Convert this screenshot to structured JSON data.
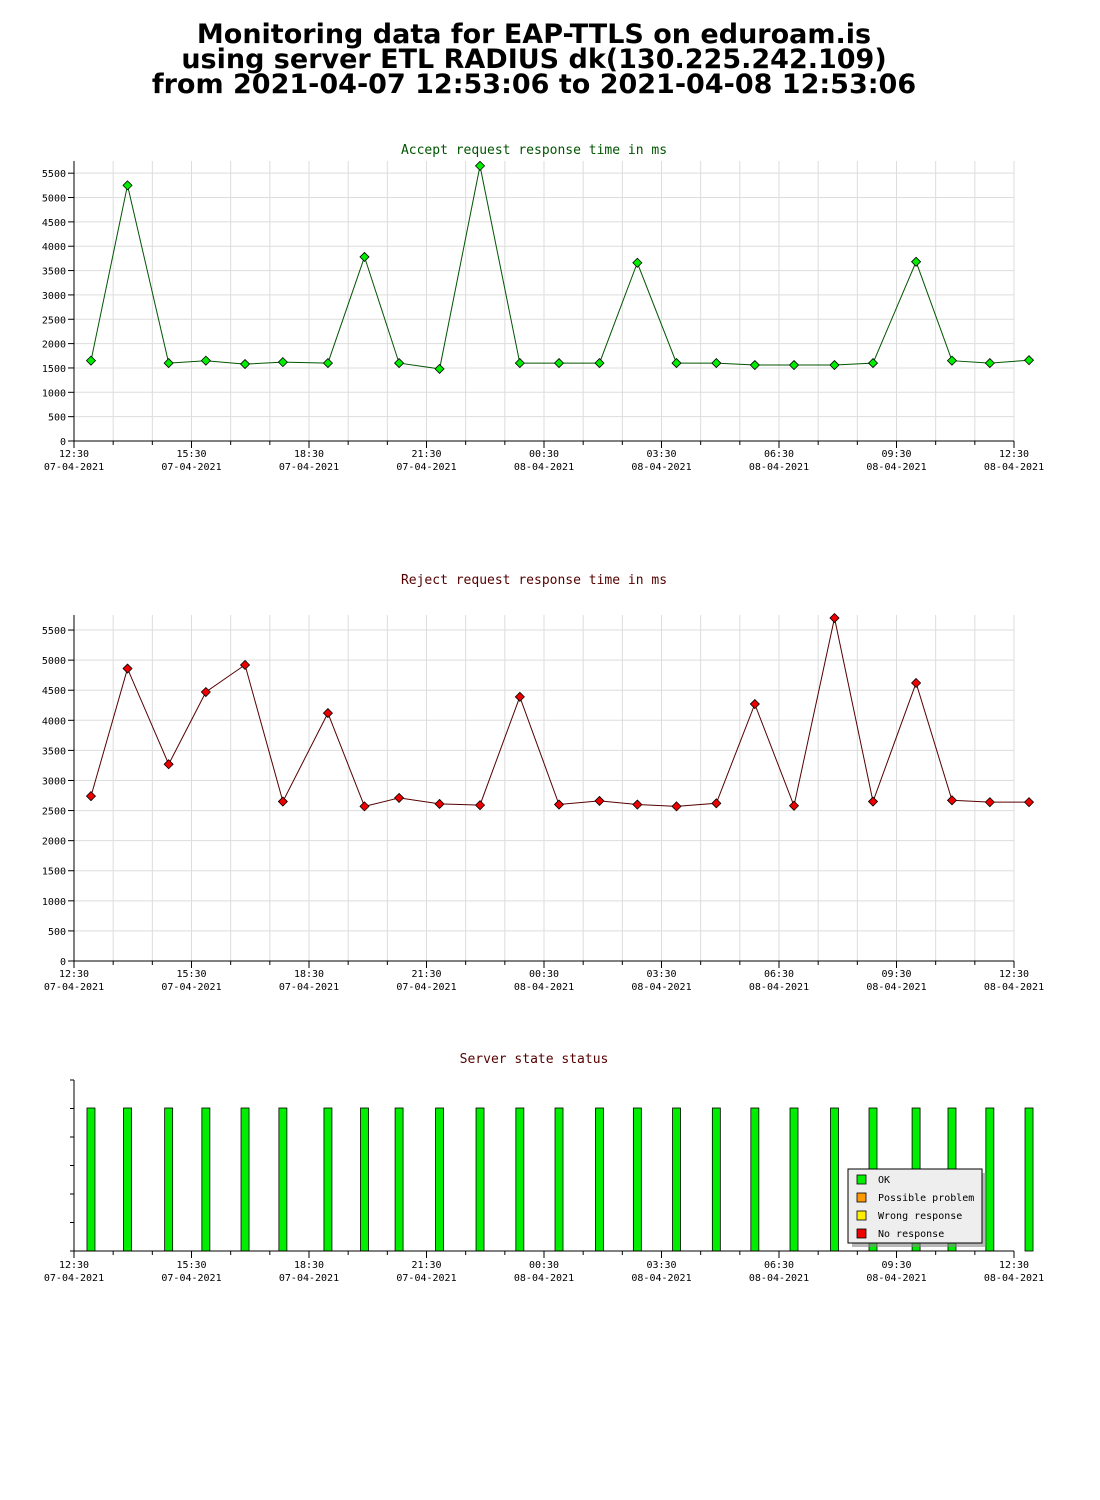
{
  "header": {
    "line1": "Monitoring data for EAP-TTLS on eduroam.is",
    "line2": "using server ETL RADIUS dk(130.225.242.109)",
    "line3": "from 2021-04-07 12:53:06 to 2021-04-08 12:53:06"
  },
  "colors": {
    "accept_marker": "#00ee00",
    "accept_line": "#005500",
    "accept_title": "#005500",
    "reject_marker": "#ee0000",
    "reject_line": "#550000",
    "reject_title": "#550000",
    "status_title": "#550000",
    "ok": "#00ee00",
    "possible_problem": "#ff9900",
    "wrong_response": "#ffee00",
    "no_response": "#ee0000",
    "grid": "#dddddd"
  },
  "x_ticks": [
    {
      "time": "12:30",
      "date": "07-04-2021"
    },
    {
      "time": "15:30",
      "date": "07-04-2021"
    },
    {
      "time": "18:30",
      "date": "07-04-2021"
    },
    {
      "time": "21:30",
      "date": "07-04-2021"
    },
    {
      "time": "00:30",
      "date": "08-04-2021"
    },
    {
      "time": "03:30",
      "date": "08-04-2021"
    },
    {
      "time": "06:30",
      "date": "08-04-2021"
    },
    {
      "time": "09:30",
      "date": "08-04-2021"
    },
    {
      "time": "12:30",
      "date": "08-04-2021"
    }
  ],
  "chart_data": [
    {
      "type": "line",
      "title": "Accept request response time in ms",
      "ylim": [
        0,
        5750
      ],
      "yticks": [
        0,
        500,
        1000,
        1500,
        2000,
        2500,
        3000,
        3500,
        4000,
        4500,
        5000,
        5500
      ],
      "xlim": [
        "2021-04-07 12:30",
        "2021-04-08 12:30"
      ],
      "grid": true,
      "series": [
        {
          "points": [
            {
              "x": "2021-04-07 12:56",
              "y": 1650
            },
            {
              "x": "2021-04-07 13:52",
              "y": 5250
            },
            {
              "x": "2021-04-07 14:55",
              "y": 1600
            },
            {
              "x": "2021-04-07 15:52",
              "y": 1650
            },
            {
              "x": "2021-04-07 16:52",
              "y": 1580
            },
            {
              "x": "2021-04-07 17:50",
              "y": 1620
            },
            {
              "x": "2021-04-07 18:59",
              "y": 1600
            },
            {
              "x": "2021-04-07 19:55",
              "y": 3780
            },
            {
              "x": "2021-04-07 20:48",
              "y": 1600
            },
            {
              "x": "2021-04-07 21:50",
              "y": 1480
            },
            {
              "x": "2021-04-07 22:52",
              "y": 5650
            },
            {
              "x": "2021-04-07 23:53",
              "y": 1600
            },
            {
              "x": "2021-04-08 00:53",
              "y": 1600
            },
            {
              "x": "2021-04-08 01:55",
              "y": 1600
            },
            {
              "x": "2021-04-08 02:53",
              "y": 3660
            },
            {
              "x": "2021-04-08 03:53",
              "y": 1600
            },
            {
              "x": "2021-04-08 04:54",
              "y": 1600
            },
            {
              "x": "2021-04-08 05:53",
              "y": 1560
            },
            {
              "x": "2021-04-08 06:53",
              "y": 1560
            },
            {
              "x": "2021-04-08 07:55",
              "y": 1560
            },
            {
              "x": "2021-04-08 08:54",
              "y": 1600
            },
            {
              "x": "2021-04-08 10:00",
              "y": 3680
            },
            {
              "x": "2021-04-08 10:55",
              "y": 1650
            },
            {
              "x": "2021-04-08 11:53",
              "y": 1600
            },
            {
              "x": "2021-04-08 12:53",
              "y": 1660
            }
          ]
        }
      ]
    },
    {
      "type": "line",
      "title": "Reject request response time in ms",
      "ylim": [
        0,
        5750
      ],
      "yticks": [
        0,
        500,
        1000,
        1500,
        2000,
        2500,
        3000,
        3500,
        4000,
        4500,
        5000,
        5500
      ],
      "xlim": [
        "2021-04-07 12:30",
        "2021-04-08 12:30"
      ],
      "grid": true,
      "series": [
        {
          "points": [
            {
              "x": "2021-04-07 12:56",
              "y": 2740
            },
            {
              "x": "2021-04-07 13:52",
              "y": 4860
            },
            {
              "x": "2021-04-07 14:55",
              "y": 3270
            },
            {
              "x": "2021-04-07 15:52",
              "y": 4470
            },
            {
              "x": "2021-04-07 16:52",
              "y": 4920
            },
            {
              "x": "2021-04-07 17:50",
              "y": 2650
            },
            {
              "x": "2021-04-07 18:59",
              "y": 4120
            },
            {
              "x": "2021-04-07 19:55",
              "y": 2570
            },
            {
              "x": "2021-04-07 20:48",
              "y": 2710
            },
            {
              "x": "2021-04-07 21:50",
              "y": 2610
            },
            {
              "x": "2021-04-07 22:52",
              "y": 2590
            },
            {
              "x": "2021-04-07 23:53",
              "y": 4390
            },
            {
              "x": "2021-04-08 00:53",
              "y": 2600
            },
            {
              "x": "2021-04-08 01:55",
              "y": 2660
            },
            {
              "x": "2021-04-08 02:53",
              "y": 2600
            },
            {
              "x": "2021-04-08 03:53",
              "y": 2570
            },
            {
              "x": "2021-04-08 04:54",
              "y": 2620
            },
            {
              "x": "2021-04-08 05:53",
              "y": 4270
            },
            {
              "x": "2021-04-08 06:53",
              "y": 2580
            },
            {
              "x": "2021-04-08 07:55",
              "y": 5700
            },
            {
              "x": "2021-04-08 08:54",
              "y": 2650
            },
            {
              "x": "2021-04-08 10:00",
              "y": 4620
            },
            {
              "x": "2021-04-08 10:55",
              "y": 2670
            },
            {
              "x": "2021-04-08 11:53",
              "y": 2640
            },
            {
              "x": "2021-04-08 12:53",
              "y": 2640
            }
          ]
        }
      ]
    },
    {
      "type": "bar",
      "title": "Server state status",
      "xlim": [
        "2021-04-07 12:30",
        "2021-04-08 12:30"
      ],
      "legend": {
        "placement": "bottom-right",
        "entries": [
          {
            "label": "OK",
            "color": "#00ee00"
          },
          {
            "label": "Possible problem",
            "color": "#ff9900"
          },
          {
            "label": "Wrong response",
            "color": "#ffee00"
          },
          {
            "label": "No response",
            "color": "#ee0000"
          }
        ]
      },
      "bars": [
        {
          "x": "2021-04-07 12:56",
          "status": "OK"
        },
        {
          "x": "2021-04-07 13:52",
          "status": "OK"
        },
        {
          "x": "2021-04-07 14:55",
          "status": "OK"
        },
        {
          "x": "2021-04-07 15:52",
          "status": "OK"
        },
        {
          "x": "2021-04-07 16:52",
          "status": "OK"
        },
        {
          "x": "2021-04-07 17:50",
          "status": "OK"
        },
        {
          "x": "2021-04-07 18:59",
          "status": "OK"
        },
        {
          "x": "2021-04-07 19:55",
          "status": "OK"
        },
        {
          "x": "2021-04-07 20:48",
          "status": "OK"
        },
        {
          "x": "2021-04-07 21:50",
          "status": "OK"
        },
        {
          "x": "2021-04-07 22:52",
          "status": "OK"
        },
        {
          "x": "2021-04-07 23:53",
          "status": "OK"
        },
        {
          "x": "2021-04-08 00:53",
          "status": "OK"
        },
        {
          "x": "2021-04-08 01:55",
          "status": "OK"
        },
        {
          "x": "2021-04-08 02:53",
          "status": "OK"
        },
        {
          "x": "2021-04-08 03:53",
          "status": "OK"
        },
        {
          "x": "2021-04-08 04:54",
          "status": "OK"
        },
        {
          "x": "2021-04-08 05:53",
          "status": "OK"
        },
        {
          "x": "2021-04-08 06:53",
          "status": "OK"
        },
        {
          "x": "2021-04-08 07:55",
          "status": "OK"
        },
        {
          "x": "2021-04-08 08:54",
          "status": "OK"
        },
        {
          "x": "2021-04-08 10:00",
          "status": "OK"
        },
        {
          "x": "2021-04-08 10:55",
          "status": "OK"
        },
        {
          "x": "2021-04-08 11:53",
          "status": "OK"
        },
        {
          "x": "2021-04-08 12:53",
          "status": "OK"
        }
      ]
    }
  ]
}
